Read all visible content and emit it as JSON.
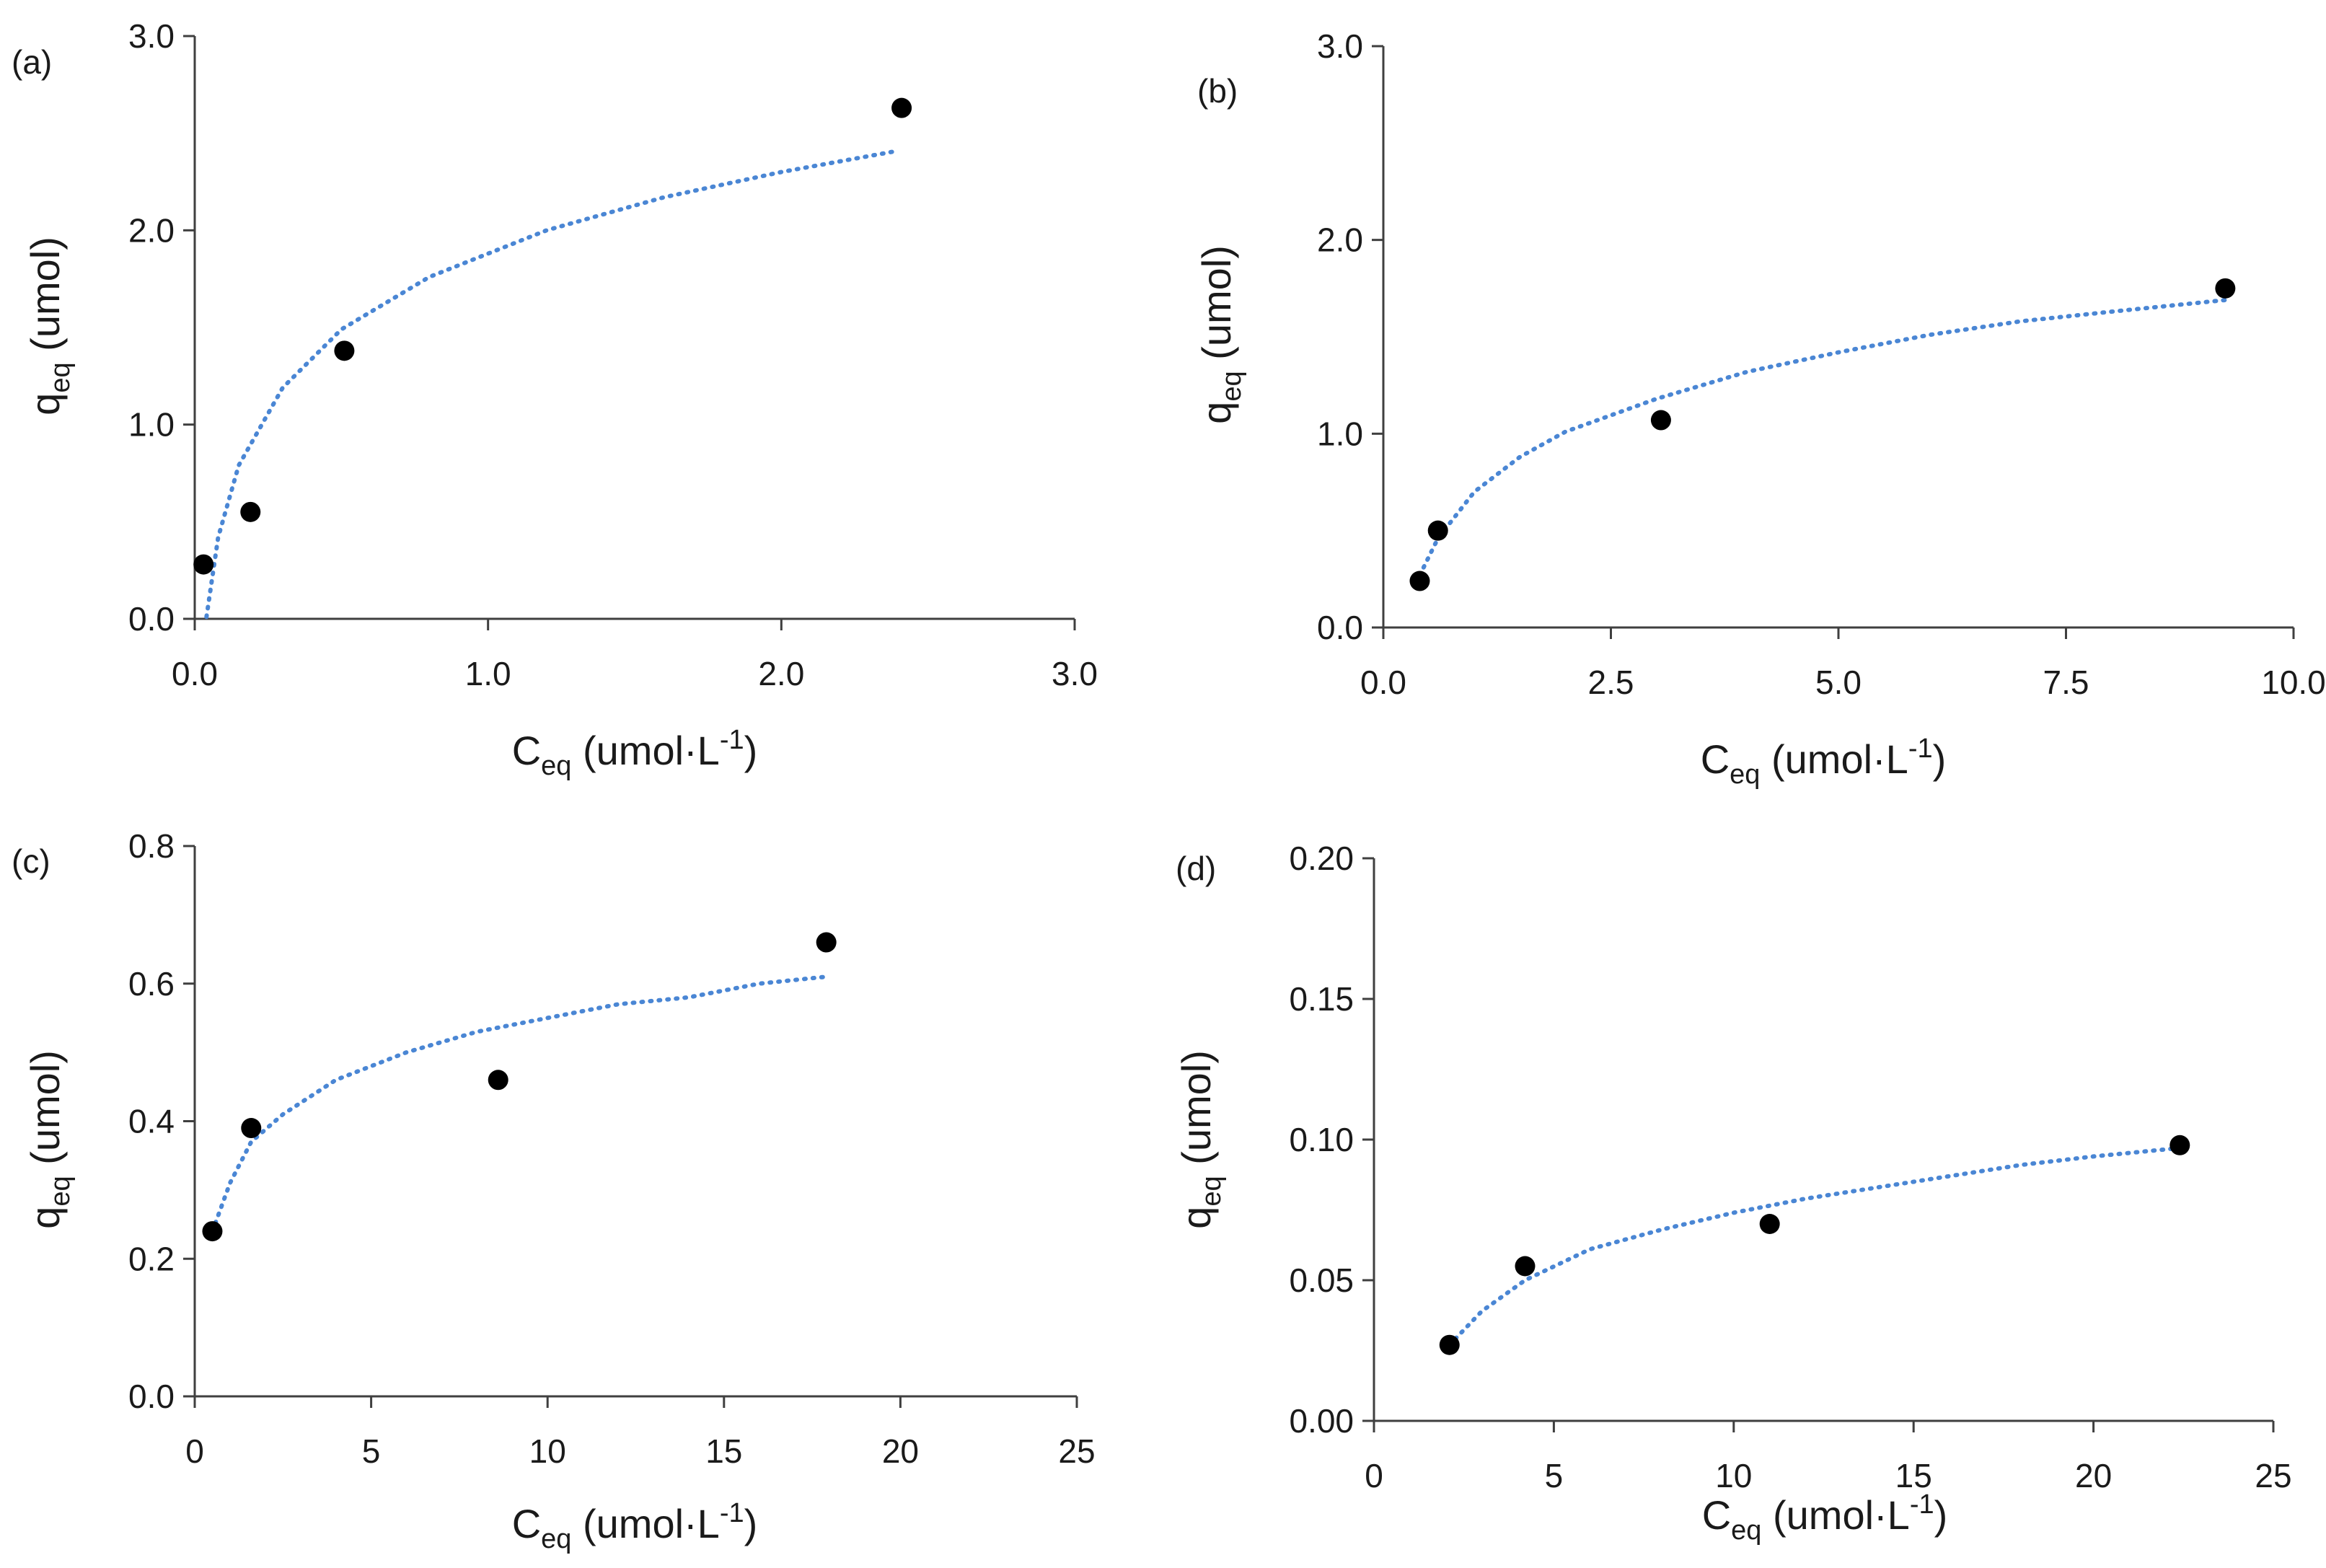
{
  "chart_data": [
    {
      "type": "scatter",
      "panel_label": "(a)",
      "xlabel": {
        "base": "C",
        "sub": "eq",
        "main": " (umol·L",
        "sup": "-1",
        "tail": ")"
      },
      "ylabel": {
        "base": "q",
        "sub": "eq",
        "main": " (umol)"
      },
      "xlim": [
        0,
        3.0
      ],
      "ylim": [
        0,
        3.0
      ],
      "x_ticks": [
        0.0,
        1.0,
        2.0,
        3.0
      ],
      "x_tick_labels": [
        "0.0",
        "1.0",
        "2.0",
        "3.0"
      ],
      "y_ticks": [
        0.0,
        1.0,
        2.0,
        3.0
      ],
      "y_tick_labels": [
        "0.0",
        "1.0",
        "2.0",
        "3.0"
      ],
      "points": [
        {
          "x": 0.03,
          "y": 0.28
        },
        {
          "x": 0.19,
          "y": 0.55
        },
        {
          "x": 0.51,
          "y": 1.38
        },
        {
          "x": 2.41,
          "y": 2.63
        }
      ],
      "trendline": {
        "style": "dotted",
        "model": "log",
        "x": [
          0.04,
          0.08,
          0.15,
          0.3,
          0.5,
          0.8,
          1.2,
          1.6,
          2.0,
          2.4
        ],
        "y": [
          0.01,
          0.42,
          0.79,
          1.19,
          1.49,
          1.76,
          2.0,
          2.17,
          2.3,
          2.41
        ]
      },
      "gridlines": false
    },
    {
      "type": "scatter",
      "panel_label": "(b)",
      "xlabel": {
        "base": "C",
        "sub": "eq",
        "main": " (umol·L",
        "sup": "-1",
        "tail": ")"
      },
      "ylabel": {
        "base": "q",
        "sub": "eq",
        "main": " (umol)"
      },
      "xlim": [
        0,
        10.0
      ],
      "ylim": [
        0,
        3.0
      ],
      "x_ticks": [
        0.0,
        2.5,
        5.0,
        7.5,
        10.0
      ],
      "x_tick_labels": [
        "0.0",
        "2.5",
        "5.0",
        "7.5",
        "10.0"
      ],
      "y_ticks": [
        0.0,
        1.0,
        2.0,
        3.0
      ],
      "y_tick_labels": [
        "0.0",
        "1.0",
        "2.0",
        "3.0"
      ],
      "points": [
        {
          "x": 0.4,
          "y": 0.24
        },
        {
          "x": 0.6,
          "y": 0.5
        },
        {
          "x": 3.05,
          "y": 1.07
        },
        {
          "x": 9.25,
          "y": 1.75
        }
      ],
      "trendline": {
        "style": "dotted",
        "model": "log",
        "x": [
          0.4,
          0.6,
          1.0,
          1.5,
          2.0,
          3.0,
          4.0,
          5.0,
          6.0,
          7.0,
          8.0,
          9.25
        ],
        "y": [
          0.27,
          0.46,
          0.7,
          0.88,
          1.01,
          1.18,
          1.32,
          1.42,
          1.51,
          1.58,
          1.63,
          1.69
        ]
      },
      "gridlines": false
    },
    {
      "type": "scatter",
      "panel_label": "(c)",
      "xlabel": {
        "base": "C",
        "sub": "eq",
        "main": " (umol·L",
        "sup": "-1",
        "tail": ")"
      },
      "ylabel": {
        "base": "q",
        "sub": "eq",
        "main": " (umol)"
      },
      "xlim": [
        0,
        25
      ],
      "ylim": [
        0,
        0.8
      ],
      "x_ticks": [
        0,
        5,
        10,
        15,
        20,
        25
      ],
      "x_tick_labels": [
        "0",
        "5",
        "10",
        "15",
        "20",
        "25"
      ],
      "y_ticks": [
        0.0,
        0.2,
        0.4,
        0.6,
        0.8
      ],
      "y_tick_labels": [
        "0.0",
        "0.2",
        "0.4",
        "0.6",
        "0.8"
      ],
      "points": [
        {
          "x": 0.5,
          "y": 0.24
        },
        {
          "x": 1.6,
          "y": 0.39
        },
        {
          "x": 8.6,
          "y": 0.46
        },
        {
          "x": 17.9,
          "y": 0.66
        }
      ],
      "trendline": {
        "style": "dotted",
        "model": "log",
        "x": [
          0.5,
          1.0,
          1.6,
          2.5,
          4.0,
          6.0,
          8.0,
          10.0,
          12.0,
          14.0,
          16.0,
          17.9
        ],
        "y": [
          0.24,
          0.31,
          0.37,
          0.41,
          0.46,
          0.5,
          0.53,
          0.55,
          0.57,
          0.58,
          0.6,
          0.61
        ]
      },
      "gridlines": false
    },
    {
      "type": "scatter",
      "panel_label": "(d)",
      "xlabel": {
        "base": "C",
        "sub": "eq",
        "main": " (umol·L",
        "sup": "-1",
        "tail": ")"
      },
      "ylabel": {
        "base": "q",
        "sub": "eq",
        "main": " (umol)"
      },
      "xlim": [
        0,
        25
      ],
      "ylim": [
        0,
        0.2
      ],
      "x_ticks": [
        0,
        5,
        10,
        15,
        20,
        25
      ],
      "x_tick_labels": [
        "0",
        "5",
        "10",
        "15",
        "20",
        "25"
      ],
      "y_ticks": [
        0.0,
        0.05,
        0.1,
        0.15,
        0.2
      ],
      "y_tick_labels": [
        "0.00",
        "0.05",
        "0.10",
        "0.15",
        "0.20"
      ],
      "points": [
        {
          "x": 2.1,
          "y": 0.027
        },
        {
          "x": 4.2,
          "y": 0.055
        },
        {
          "x": 11.0,
          "y": 0.07
        },
        {
          "x": 22.4,
          "y": 0.098
        }
      ],
      "trendline": {
        "style": "dotted",
        "model": "log",
        "x": [
          2.1,
          3.0,
          4.2,
          6.0,
          8.0,
          10.0,
          12.0,
          14.0,
          16.0,
          18.0,
          20.0,
          22.4
        ],
        "y": [
          0.027,
          0.039,
          0.05,
          0.061,
          0.068,
          0.074,
          0.079,
          0.083,
          0.087,
          0.091,
          0.094,
          0.097
        ]
      },
      "gridlines": false
    }
  ],
  "colors": {
    "axis": "#3f3f3f",
    "text": "#1a1a1a",
    "marker": "#000000",
    "trendline": "#4a86d4",
    "background": "#ffffff"
  }
}
